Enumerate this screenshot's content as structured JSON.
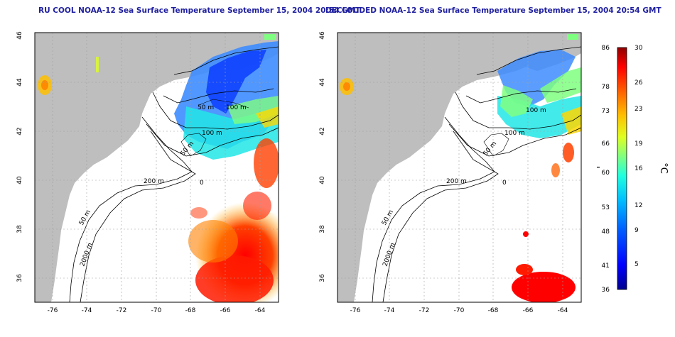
{
  "panels": [
    {
      "id": "left",
      "title": "RU COOL NOAA-12 Sea Surface Temperature September 15, 2004 20:54 GMT",
      "x_ticks": [
        "-76",
        "-74",
        "-72",
        "-70",
        "-68",
        "-66",
        "-64"
      ],
      "y_ticks": [
        "36",
        "38",
        "40",
        "42",
        "44",
        "46"
      ],
      "contour_labels": [
        "50 m",
        "100 m",
        "100 m",
        "50 m",
        "200 m",
        "50 m",
        "2000 m",
        "0"
      ]
    },
    {
      "id": "right",
      "title": "DECLOUDED NOAA-12 Sea Surface Temperature September 15, 2004 20:54 GMT",
      "x_ticks": [
        "-76",
        "-74",
        "-72",
        "-70",
        "-68",
        "-66",
        "-64"
      ],
      "y_ticks": [
        "36",
        "38",
        "40",
        "42",
        "44",
        "46"
      ],
      "contour_labels": [
        "100 m",
        "100 m",
        "50 m",
        "200 m",
        "50 m",
        "2000 m",
        "0"
      ]
    }
  ],
  "colorbar": {
    "unit_left": "°F",
    "unit_right": "°C",
    "f_ticks": [
      "86",
      "78",
      "73",
      "66",
      "60",
      "53",
      "48",
      "41",
      "36"
    ],
    "c_ticks": [
      "30",
      "26",
      "23",
      "19",
      "16",
      "12",
      "9",
      "5"
    ],
    "colors": [
      "#00008f",
      "#0000ff",
      "#0060ff",
      "#00bfff",
      "#20ffdf",
      "#80ff80",
      "#dfff20",
      "#ffbf00",
      "#ff6000",
      "#ff0000",
      "#8f0000"
    ]
  },
  "map_colors": {
    "land": "#bebebe",
    "ocean": "#ffffff",
    "contour": "#000000",
    "grid": "#a0a0a0"
  }
}
